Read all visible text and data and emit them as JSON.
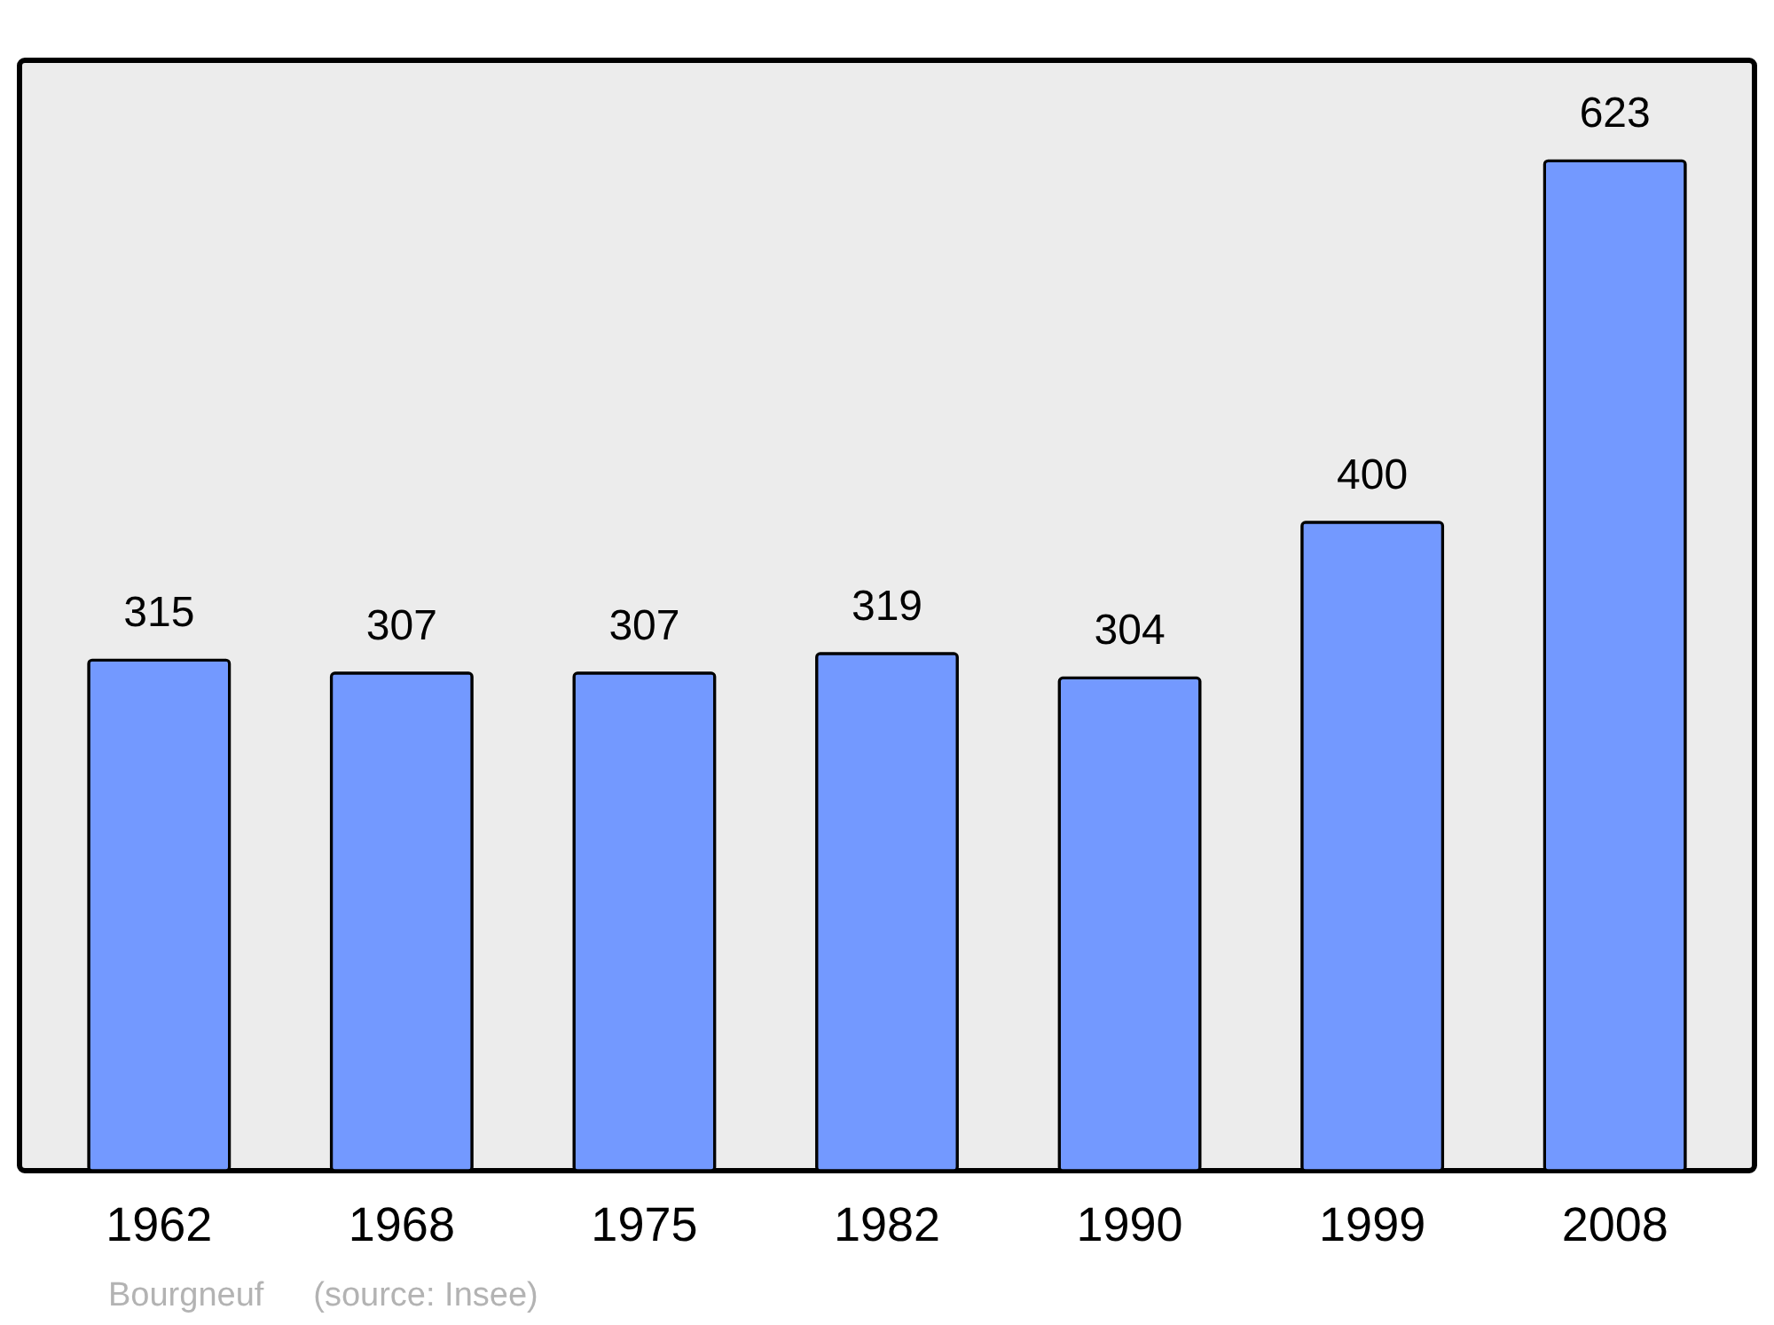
{
  "chart_data": {
    "type": "bar",
    "categories": [
      "1962",
      "1968",
      "1975",
      "1982",
      "1990",
      "1999",
      "2008"
    ],
    "values": [
      315,
      307,
      307,
      319,
      304,
      400,
      623
    ],
    "color": "#7399ff",
    "ylim": [
      0,
      685
    ],
    "data_labels": true,
    "tick_labels": "x",
    "annotations": [
      "Bourgneuf",
      "(source: Insee)"
    ]
  }
}
